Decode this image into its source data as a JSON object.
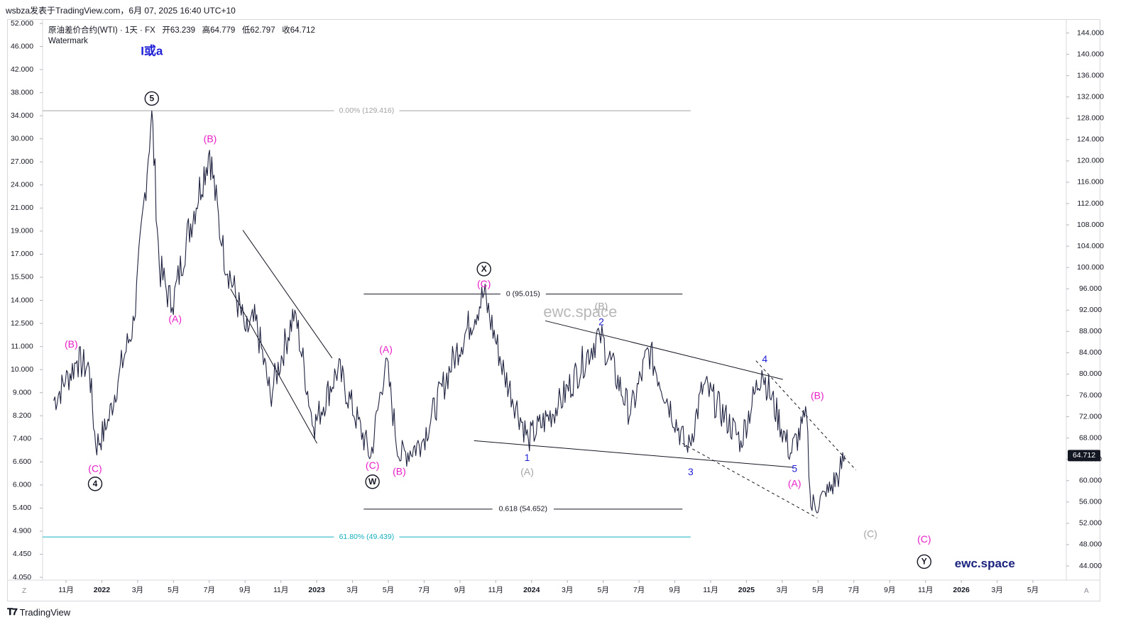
{
  "header": {
    "text": "wsbza发表于TradingView.com，6月 07, 2025 16:40 UTC+10"
  },
  "legend": {
    "symbol_line": "原油差价合约(WTI) · 1天 · FX",
    "open_label": "开",
    "open": "63.239",
    "high_label": "高",
    "high": "64.779",
    "low_label": "低",
    "low": "62.797",
    "close_label": "收",
    "close": "64.712",
    "watermark_line": "Watermark"
  },
  "footer": {
    "brand": "TradingView",
    "corner_left": "Z",
    "corner_right": "A"
  },
  "current_price": "64.712",
  "colors": {
    "magenta": "#e91ec7",
    "blue": "#1e1ed6",
    "gray": "#a3a3a3",
    "black": "#131722",
    "teal": "#17b0c0",
    "grid": "#d6d8de"
  },
  "chart_data": {
    "type": "line",
    "title": "原油差价合约(WTI) · 1天 · FX",
    "xlabel": "",
    "ylabel": "",
    "grid": false,
    "x_ticks": [
      "11月",
      "2022",
      "3月",
      "5月",
      "7月",
      "9月",
      "11月",
      "2023",
      "3月",
      "5月",
      "7月",
      "9月",
      "11月",
      "2024",
      "3月",
      "5月",
      "7月",
      "9月",
      "11月",
      "2025",
      "3月",
      "5月",
      "7月",
      "9月",
      "11月",
      "2026",
      "3月",
      "5月"
    ],
    "left_axis_ticks": [
      "52.000",
      "46.000",
      "42.000",
      "38.000",
      "34.000",
      "30.000",
      "27.000",
      "24.000",
      "21.000",
      "19.000",
      "17.000",
      "15.500",
      "14.000",
      "12.500",
      "11.000",
      "10.000",
      "9.000",
      "8.200",
      "7.400",
      "6.600",
      "6.000",
      "5.400",
      "4.900",
      "4.450",
      "4.050"
    ],
    "right_axis_ticks": [
      "144.000",
      "140.000",
      "136.000",
      "132.000",
      "128.000",
      "124.000",
      "120.000",
      "116.000",
      "112.000",
      "108.000",
      "104.000",
      "100.000",
      "96.000",
      "92.000",
      "88.000",
      "84.000",
      "80.000",
      "76.000",
      "72.000",
      "68.000",
      "64.000",
      "60.000",
      "56.000",
      "52.000",
      "48.000",
      "44.000"
    ],
    "right_axis_range": [
      42,
      146
    ],
    "price_series": [
      {
        "date": "2021-09-20",
        "price": 75.0
      },
      {
        "date": "2021-10-10",
        "price": 78.5
      },
      {
        "date": "2021-10-30",
        "price": 82.5
      },
      {
        "date": "2021-11-20",
        "price": 81.0
      },
      {
        "date": "2021-12-01",
        "price": 66.5
      },
      {
        "date": "2021-12-20",
        "price": 70.0
      },
      {
        "date": "2022-01-10",
        "price": 80.0
      },
      {
        "date": "2022-02-05",
        "price": 90.0
      },
      {
        "date": "2022-03-07",
        "price": 129.4
      },
      {
        "date": "2022-03-20",
        "price": 100.0
      },
      {
        "date": "2022-04-11",
        "price": 92.5
      },
      {
        "date": "2022-05-05",
        "price": 105.0
      },
      {
        "date": "2022-06-14",
        "price": 122.0
      },
      {
        "date": "2022-07-05",
        "price": 104.0
      },
      {
        "date": "2022-08-15",
        "price": 88.0
      },
      {
        "date": "2022-09-01",
        "price": 90.0
      },
      {
        "date": "2022-09-26",
        "price": 76.0
      },
      {
        "date": "2022-11-07",
        "price": 92.0
      },
      {
        "date": "2022-12-09",
        "price": 70.0
      },
      {
        "date": "2023-01-20",
        "price": 81.0
      },
      {
        "date": "2023-03-17",
        "price": 64.5
      },
      {
        "date": "2023-04-12",
        "price": 83.0
      },
      {
        "date": "2023-05-04",
        "price": 64.4
      },
      {
        "date": "2023-06-12",
        "price": 67.0
      },
      {
        "date": "2023-08-10",
        "price": 84.0
      },
      {
        "date": "2023-09-27",
        "price": 95.0
      },
      {
        "date": "2023-11-01",
        "price": 80.0
      },
      {
        "date": "2023-12-12",
        "price": 67.8
      },
      {
        "date": "2024-02-01",
        "price": 74.0
      },
      {
        "date": "2024-04-12",
        "price": 87.7
      },
      {
        "date": "2024-06-04",
        "price": 72.5
      },
      {
        "date": "2024-07-05",
        "price": 84.5
      },
      {
        "date": "2024-09-10",
        "price": 65.3
      },
      {
        "date": "2024-10-07",
        "price": 78.0
      },
      {
        "date": "2024-12-10",
        "price": 67.5
      },
      {
        "date": "2025-01-15",
        "price": 80.7
      },
      {
        "date": "2025-03-05",
        "price": 65.2
      },
      {
        "date": "2025-04-02",
        "price": 71.8
      },
      {
        "date": "2025-04-09",
        "price": 55.1
      },
      {
        "date": "2025-05-05",
        "price": 57.0
      },
      {
        "date": "2025-05-28",
        "price": 61.5
      },
      {
        "date": "2025-06-06",
        "price": 64.712
      }
    ],
    "levels": [
      {
        "label": "0.00% (129.416)",
        "price": 129.416,
        "from": "2021-09-01",
        "to": "2024-09-15",
        "color": "#a3a3a3"
      },
      {
        "label": "61.80% (49.439)",
        "price": 49.439,
        "from": "2021-09-01",
        "to": "2024-09-15",
        "color": "#17b0c0"
      },
      {
        "label": "0 (95.015)",
        "price": 95.015,
        "from": "2023-03-05",
        "to": "2024-09-01",
        "color": "#131722"
      },
      {
        "label": "0.618 (54.652)",
        "price": 54.652,
        "from": "2023-03-05",
        "to": "2024-09-01",
        "color": "#131722"
      }
    ],
    "trendlines": [
      {
        "from": [
          "2022-07-20",
          96
        ],
        "to": [
          "2022-12-15",
          67
        ],
        "style": "solid"
      },
      {
        "from": [
          "2022-08-10",
          107
        ],
        "to": [
          "2023-01-10",
          83
        ],
        "style": "solid"
      },
      {
        "from": [
          "2023-09-10",
          67.5
        ],
        "to": [
          "2025-03-10",
          62.5
        ],
        "style": "solid"
      },
      {
        "from": [
          "2024-01-10",
          90
        ],
        "to": [
          "2025-02-20",
          79
        ],
        "style": "solid"
      },
      {
        "from": [
          "2024-09-01",
          67
        ],
        "to": [
          "2025-04-20",
          53
        ],
        "style": "dashed"
      },
      {
        "from": [
          "2025-01-05",
          82.5
        ],
        "to": [
          "2025-06-25",
          62
        ],
        "style": "dashed"
      }
    ],
    "annotations": [
      {
        "text": "I或a",
        "date": "2022-03-07",
        "price": 140.5,
        "color": "#1e1ed6",
        "size": 17
      },
      {
        "text": "5",
        "date": "2022-03-07",
        "price": 131.7,
        "color": "#131722",
        "circle": true
      },
      {
        "text": "(B)",
        "date": "2021-10-20",
        "price": 85.5,
        "color": "#e91ec7"
      },
      {
        "text": "(C)",
        "date": "2021-11-30",
        "price": 62.1,
        "color": "#e91ec7"
      },
      {
        "text": "4",
        "date": "2021-11-30",
        "price": 59.4,
        "color": "#131722",
        "circle": true
      },
      {
        "text": "(A)",
        "date": "2022-04-16",
        "price": 90.2,
        "color": "#e91ec7"
      },
      {
        "text": "(B)",
        "date": "2022-06-15",
        "price": 124.0,
        "color": "#e91ec7"
      },
      {
        "text": "(A)",
        "date": "2023-04-12",
        "price": 84.5,
        "color": "#e91ec7"
      },
      {
        "text": "(C)",
        "date": "2023-03-20",
        "price": 62.7,
        "color": "#e91ec7"
      },
      {
        "text": "W",
        "date": "2023-03-20",
        "price": 59.8,
        "color": "#131722",
        "circle": true
      },
      {
        "text": "(B)",
        "date": "2023-05-05",
        "price": 61.6,
        "color": "#e91ec7"
      },
      {
        "text": "X",
        "date": "2023-09-27",
        "price": 99.7,
        "color": "#131722",
        "circle": true
      },
      {
        "text": "(C)",
        "date": "2023-09-27",
        "price": 96.8,
        "color": "#e91ec7"
      },
      {
        "text": "1",
        "date": "2023-12-10",
        "price": 64.2,
        "color": "#1e1ed6"
      },
      {
        "text": "(A)",
        "date": "2023-12-10",
        "price": 61.5,
        "color": "#a3a3a3"
      },
      {
        "text": "(B)",
        "date": "2024-04-15",
        "price": 92.6,
        "color": "#a3a3a3"
      },
      {
        "text": "2",
        "date": "2024-04-15",
        "price": 89.7,
        "color": "#1e1ed6"
      },
      {
        "text": "3",
        "date": "2024-09-15",
        "price": 61.5,
        "color": "#1e1ed6"
      },
      {
        "text": "4",
        "date": "2025-01-20",
        "price": 82.7,
        "color": "#1e1ed6"
      },
      {
        "text": "(B)",
        "date": "2025-04-20",
        "price": 75.8,
        "color": "#e91ec7"
      },
      {
        "text": "5",
        "date": "2025-03-12",
        "price": 62.1,
        "color": "#1e1ed6"
      },
      {
        "text": "(A)",
        "date": "2025-03-12",
        "price": 59.3,
        "color": "#e91ec7"
      },
      {
        "text": "(C)",
        "date": "2025-07-20",
        "price": 49.9,
        "color": "#a3a3a3"
      },
      {
        "text": "(C)",
        "date": "2025-10-20",
        "price": 48.9,
        "color": "#e91ec7"
      },
      {
        "text": "Y",
        "date": "2025-10-20",
        "price": 44.8,
        "color": "#131722",
        "circle": true
      }
    ],
    "watermarks": [
      {
        "text": "ewc.space",
        "date": "2024-03-10",
        "price": 91.5,
        "color": "#b8b8b8",
        "size": 22
      },
      {
        "text": "ewc.space",
        "date": "2026-02-01",
        "price": 44.3,
        "color": "#1a237e",
        "size": 17,
        "bold": true
      }
    ]
  }
}
